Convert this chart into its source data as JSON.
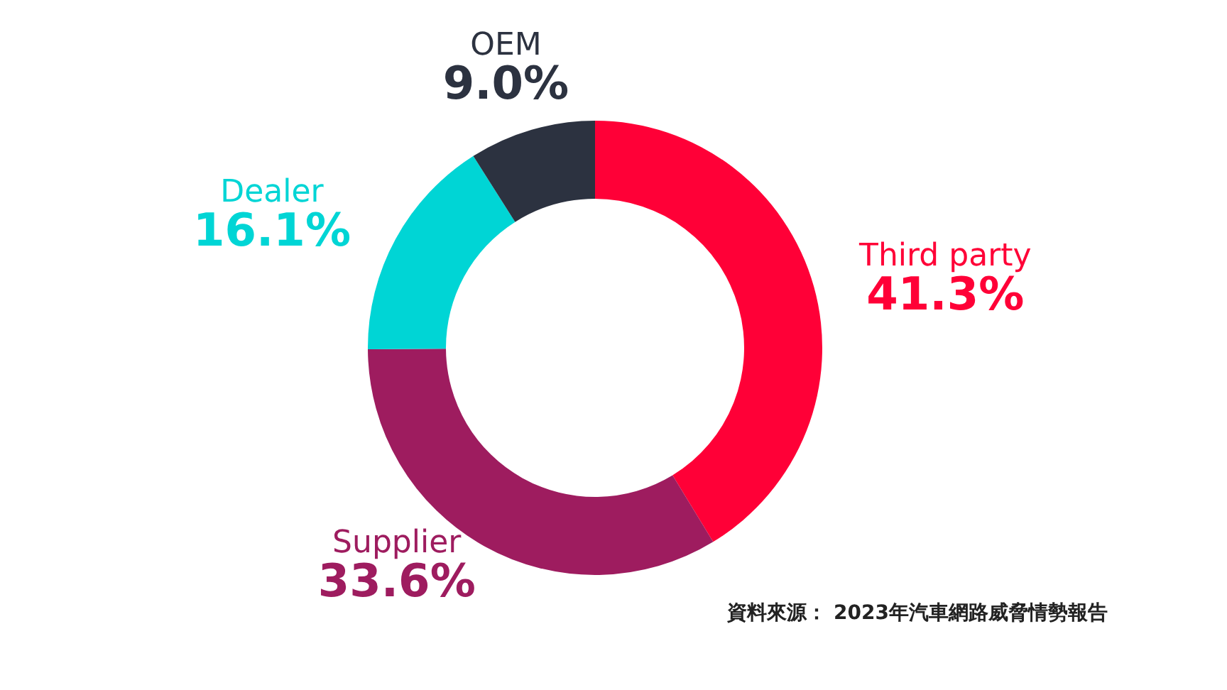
{
  "chart_data": {
    "type": "donut",
    "categories": [
      "Third party",
      "Supplier",
      "Dealer",
      "OEM"
    ],
    "values": [
      41.3,
      33.6,
      16.1,
      9.0
    ],
    "value_labels": [
      "41.3%",
      "33.6%",
      "16.1%",
      "9.0%"
    ],
    "colors": [
      "#ff0037",
      "#9e1c5f",
      "#00d5d5",
      "#2c3240"
    ],
    "annotations": [
      "資料來源： 2023年汽車網路威脅情勢報告"
    ]
  }
}
